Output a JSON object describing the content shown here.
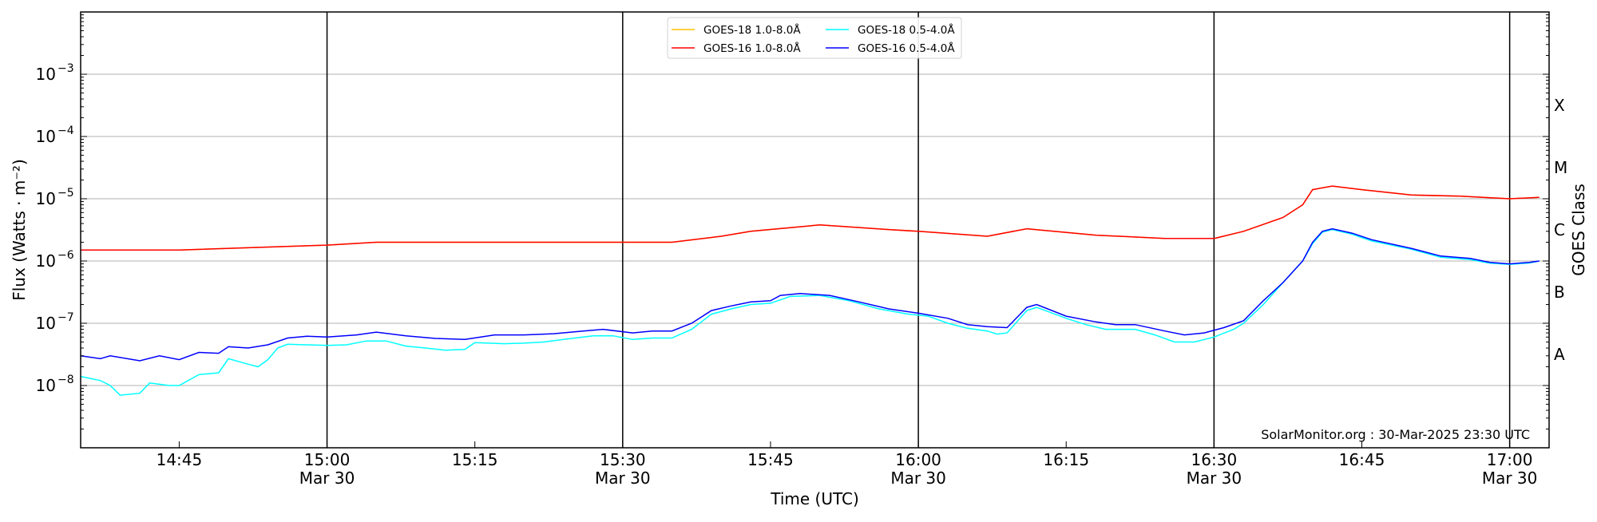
{
  "chart_data": {
    "type": "line",
    "xlabel": "Time (UTC)",
    "ylabel": "Flux (Watts · m⁻²)",
    "ylabel_right": "GOES Class",
    "xlim": [
      "14:35",
      "17:04"
    ],
    "ylim": [
      1e-09,
      0.01
    ],
    "yscale": "log",
    "grid": "horizontal at decades",
    "legend_placement": "top-center",
    "ytick_labels": [
      {
        "value": 0.001,
        "label": "10",
        "exp": "−3"
      },
      {
        "value": 0.0001,
        "label": "10",
        "exp": "−4"
      },
      {
        "value": 1e-05,
        "label": "10",
        "exp": "−5"
      },
      {
        "value": 1e-06,
        "label": "10",
        "exp": "−6"
      },
      {
        "value": 1e-07,
        "label": "10",
        "exp": "−7"
      },
      {
        "value": 1e-08,
        "label": "10",
        "exp": "−8"
      }
    ],
    "xtick_labels": [
      {
        "time": "14:45",
        "label": "14:45",
        "sub": ""
      },
      {
        "time": "15:00",
        "label": "15:00",
        "sub": "Mar 30"
      },
      {
        "time": "15:15",
        "label": "15:15",
        "sub": ""
      },
      {
        "time": "15:30",
        "label": "15:30",
        "sub": "Mar 30"
      },
      {
        "time": "15:45",
        "label": "15:45",
        "sub": ""
      },
      {
        "time": "16:00",
        "label": "16:00",
        "sub": "Mar 30"
      },
      {
        "time": "16:15",
        "label": "16:15",
        "sub": ""
      },
      {
        "time": "16:30",
        "label": "16:30",
        "sub": "Mar 30"
      },
      {
        "time": "16:45",
        "label": "16:45",
        "sub": ""
      },
      {
        "time": "17:00",
        "label": "17:00",
        "sub": "Mar 30"
      }
    ],
    "vertical_lines": [
      "15:00",
      "15:30",
      "16:00",
      "16:30",
      "17:00"
    ],
    "goes_classes": [
      {
        "label": "X",
        "value": 0.000316
      },
      {
        "label": "M",
        "value": 3.16e-05
      },
      {
        "label": "C",
        "value": 3.16e-06
      },
      {
        "label": "B",
        "value": 3.16e-07
      },
      {
        "label": "A",
        "value": 3.16e-08
      }
    ],
    "annotation": "SolarMonitor.org : 30-Mar-2025 23:30 UTC",
    "series": [
      {
        "name": "GOES-18 1.0-8.0Å",
        "color": "#ffc000",
        "x": [
          "14:35",
          "14:45",
          "15:00",
          "15:05",
          "15:35",
          "15:40",
          "15:43",
          "15:50",
          "15:57",
          "16:00",
          "16:07",
          "16:11",
          "16:18",
          "16:25",
          "16:30",
          "16:33",
          "16:37",
          "16:39",
          "16:40",
          "16:42",
          "16:45",
          "16:50",
          "16:55",
          "17:00",
          "17:03"
        ],
        "y": [
          1.5e-06,
          1.5e-06,
          1.8e-06,
          2e-06,
          2e-06,
          2.5e-06,
          3e-06,
          3.8e-06,
          3.2e-06,
          3e-06,
          2.5e-06,
          3.3e-06,
          2.6e-06,
          2.3e-06,
          2.3e-06,
          3e-06,
          5e-06,
          8e-06,
          1.4e-05,
          1.6e-05,
          1.4e-05,
          1.15e-05,
          1.1e-05,
          1e-05,
          1.05e-05
        ]
      },
      {
        "name": "GOES-16 1.0-8.0Å",
        "color": "#ff0000",
        "x": [
          "14:35",
          "14:45",
          "15:00",
          "15:05",
          "15:35",
          "15:40",
          "15:43",
          "15:50",
          "15:57",
          "16:00",
          "16:07",
          "16:11",
          "16:18",
          "16:25",
          "16:30",
          "16:33",
          "16:37",
          "16:39",
          "16:40",
          "16:42",
          "16:45",
          "16:50",
          "16:55",
          "17:00",
          "17:03"
        ],
        "y": [
          1.5e-06,
          1.5e-06,
          1.8e-06,
          2e-06,
          2e-06,
          2.5e-06,
          3e-06,
          3.8e-06,
          3.2e-06,
          3e-06,
          2.5e-06,
          3.3e-06,
          2.6e-06,
          2.3e-06,
          2.3e-06,
          3e-06,
          5e-06,
          8e-06,
          1.4e-05,
          1.6e-05,
          1.4e-05,
          1.15e-05,
          1.1e-05,
          1e-05,
          1.05e-05
        ]
      },
      {
        "name": "GOES-18 0.5-4.0Å",
        "color": "#00ffff",
        "x": [
          "14:35",
          "14:37",
          "14:38",
          "14:39",
          "14:41",
          "14:42",
          "14:44",
          "14:45",
          "14:47",
          "14:49",
          "14:50",
          "14:52",
          "14:53",
          "14:54",
          "14:55",
          "14:56",
          "15:00",
          "15:02",
          "15:04",
          "15:06",
          "15:08",
          "15:10",
          "15:12",
          "15:14",
          "15:15",
          "15:18",
          "15:20",
          "15:22",
          "15:24",
          "15:27",
          "15:29",
          "15:31",
          "15:33",
          "15:35",
          "15:37",
          "15:39",
          "15:41",
          "15:43",
          "15:45",
          "15:47",
          "15:50",
          "15:53",
          "15:56",
          "15:59",
          "16:01",
          "16:03",
          "16:05",
          "16:07",
          "16:08",
          "16:09",
          "16:11",
          "16:12",
          "16:15",
          "16:17",
          "16:19",
          "16:22",
          "16:24",
          "16:26",
          "16:28",
          "16:30",
          "16:32",
          "16:33",
          "16:35",
          "16:37",
          "16:39",
          "16:40",
          "16:41",
          "16:42",
          "16:44",
          "16:46",
          "16:50",
          "16:53",
          "16:56",
          "16:58",
          "17:00",
          "17:02",
          "17:03"
        ],
        "y": [
          1.4e-08,
          1.2e-08,
          1e-08,
          7e-09,
          7.5e-09,
          1.1e-08,
          1e-08,
          1e-08,
          1.5e-08,
          1.6e-08,
          2.7e-08,
          2.2e-08,
          2e-08,
          2.6e-08,
          4e-08,
          4.6e-08,
          4.4e-08,
          4.5e-08,
          5.2e-08,
          5.2e-08,
          4.3e-08,
          4e-08,
          3.7e-08,
          3.8e-08,
          4.9e-08,
          4.7e-08,
          4.8e-08,
          5e-08,
          5.5e-08,
          6.3e-08,
          6.3e-08,
          5.5e-08,
          5.8e-08,
          5.8e-08,
          8e-08,
          1.4e-07,
          1.7e-07,
          2e-07,
          2.1e-07,
          2.7e-07,
          2.8e-07,
          2.3e-07,
          1.7e-07,
          1.4e-07,
          1.3e-07,
          1e-07,
          8.3e-08,
          7.5e-08,
          6.7e-08,
          7e-08,
          1.6e-07,
          1.8e-07,
          1.2e-07,
          9.5e-08,
          8e-08,
          8e-08,
          6.5e-08,
          5e-08,
          5e-08,
          6e-08,
          8e-08,
          1e-07,
          2e-07,
          4.5e-07,
          1e-06,
          1.9e-06,
          2.9e-06,
          3.2e-06,
          2.7e-06,
          2.1e-06,
          1.55e-06,
          1.15e-06,
          1.05e-06,
          9.2e-07,
          8.8e-07,
          9.3e-07,
          1e-06
        ]
      },
      {
        "name": "GOES-16 0.5-4.0Å",
        "color": "#0000ff",
        "x": [
          "14:35",
          "14:37",
          "14:38",
          "14:41",
          "14:43",
          "14:45",
          "14:47",
          "14:49",
          "14:50",
          "14:52",
          "14:54",
          "14:56",
          "14:58",
          "15:00",
          "15:03",
          "15:05",
          "15:08",
          "15:11",
          "15:14",
          "15:17",
          "15:20",
          "15:23",
          "15:26",
          "15:28",
          "15:31",
          "15:33",
          "15:35",
          "15:37",
          "15:39",
          "15:41",
          "15:43",
          "15:45",
          "15:46",
          "15:48",
          "15:51",
          "15:54",
          "15:57",
          "16:00",
          "16:03",
          "16:05",
          "16:07",
          "16:09",
          "16:11",
          "16:12",
          "16:15",
          "16:18",
          "16:20",
          "16:22",
          "16:25",
          "16:27",
          "16:29",
          "16:31",
          "16:33",
          "16:35",
          "16:37",
          "16:39",
          "16:40",
          "16:41",
          "16:42",
          "16:44",
          "16:46",
          "16:50",
          "16:53",
          "16:56",
          "16:58",
          "17:00",
          "17:02",
          "17:03"
        ],
        "y": [
          3e-08,
          2.7e-08,
          3e-08,
          2.5e-08,
          3e-08,
          2.6e-08,
          3.4e-08,
          3.3e-08,
          4.2e-08,
          4e-08,
          4.5e-08,
          5.8e-08,
          6.2e-08,
          6e-08,
          6.5e-08,
          7.2e-08,
          6.3e-08,
          5.7e-08,
          5.5e-08,
          6.5e-08,
          6.5e-08,
          6.8e-08,
          7.5e-08,
          8e-08,
          7e-08,
          7.5e-08,
          7.5e-08,
          1e-07,
          1.6e-07,
          1.9e-07,
          2.2e-07,
          2.3e-07,
          2.8e-07,
          3e-07,
          2.8e-07,
          2.2e-07,
          1.7e-07,
          1.45e-07,
          1.2e-07,
          9.5e-08,
          8.8e-08,
          8.5e-08,
          1.8e-07,
          2e-07,
          1.3e-07,
          1.05e-07,
          9.5e-08,
          9.5e-08,
          7.5e-08,
          6.5e-08,
          7e-08,
          8.5e-08,
          1.1e-07,
          2.3e-07,
          4.5e-07,
          1e-06,
          2e-06,
          3e-06,
          3.3e-06,
          2.8e-06,
          2.2e-06,
          1.6e-06,
          1.2e-06,
          1.1e-06,
          9.5e-07,
          9e-07,
          9.5e-07,
          1e-06
        ]
      }
    ]
  }
}
